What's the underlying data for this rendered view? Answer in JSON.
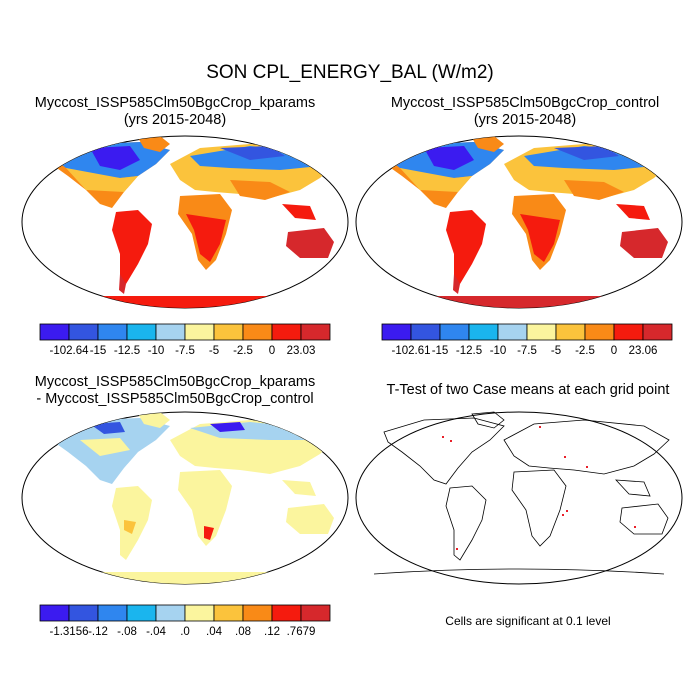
{
  "figure": {
    "title": "SON CPL_ENERGY_BAL (W/m2)"
  },
  "panels": [
    {
      "id": "kparams",
      "title_line1": "Myccost_ISSP585Clm50BgcCrop_kparams",
      "title_line2": "(yrs 2015-2048)"
    },
    {
      "id": "control",
      "title_line1": "Myccost_ISSP585Clm50BgcCrop_control",
      "title_line2": "(yrs 2015-2048)"
    },
    {
      "id": "difference",
      "title_line1": "Myccost_ISSP585Clm50BgcCrop_kparams",
      "title_line2": "- Myccost_ISSP585Clm50BgcCrop_control"
    },
    {
      "id": "ttest",
      "title_line1": "T-Test of two Case means at each grid point",
      "title_line2": ""
    }
  ],
  "colorbars": [
    {
      "colors": [
        "#3b1bf0",
        "#3355e0",
        "#2f86ef",
        "#1ab5ee",
        "#a6d3f0",
        "#fbf59e",
        "#fbc33c",
        "#f98a17",
        "#f51b0e",
        "#d6282c"
      ],
      "labels": [
        "-102.64",
        "-15",
        "-12.5",
        "-10",
        "-7.5",
        "-5",
        "-2.5",
        "0",
        "23.03"
      ]
    },
    {
      "colors": [
        "#3b1bf0",
        "#3355e0",
        "#2f86ef",
        "#1ab5ee",
        "#a6d3f0",
        "#fbf59e",
        "#fbc33c",
        "#f98a17",
        "#f51b0e",
        "#d6282c"
      ],
      "labels": [
        "-102.61",
        "-15",
        "-12.5",
        "-10",
        "-7.5",
        "-5",
        "-2.5",
        "0",
        "23.06"
      ]
    },
    {
      "colors": [
        "#3b1bf0",
        "#3355e0",
        "#2f86ef",
        "#1ab5ee",
        "#a6d3f0",
        "#fbf59e",
        "#fbc33c",
        "#f98a17",
        "#f51b0e",
        "#d6282c"
      ],
      "labels": [
        "-1.3156",
        "-.12",
        "-.08",
        "-.04",
        ".0",
        ".04",
        ".08",
        ".12",
        ".7679"
      ]
    }
  ],
  "significance_note": "Cells are significant at 0.1 level",
  "colors": {
    "coastline": "#000000",
    "significant_cell": "#e8202a"
  }
}
